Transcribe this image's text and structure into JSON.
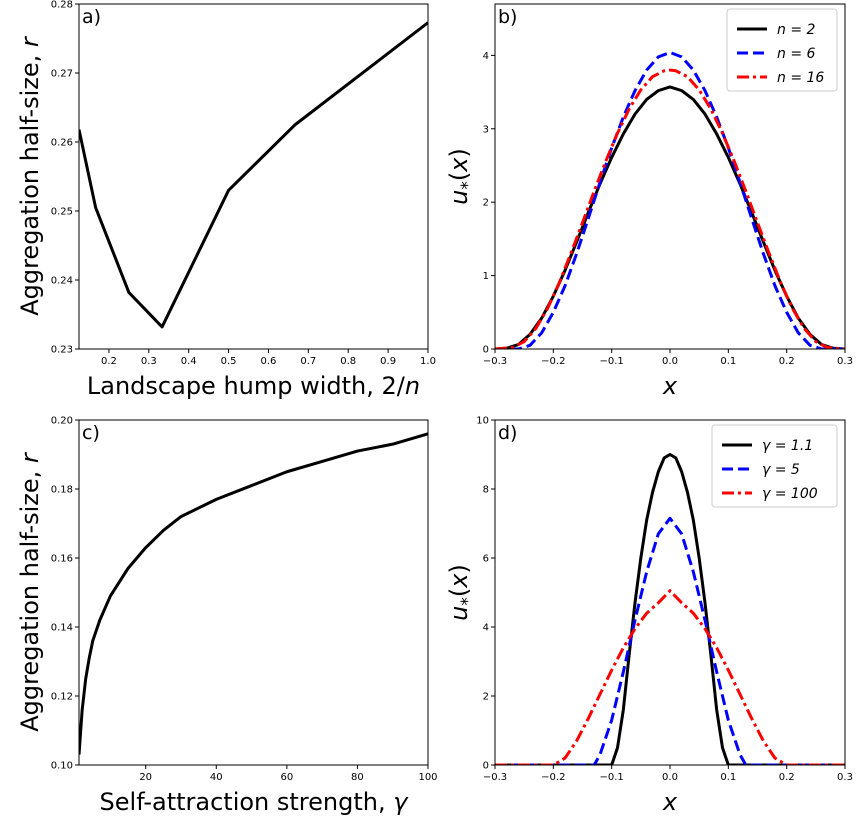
{
  "chart_data": [
    {
      "type": "line",
      "panel_label": "a)",
      "xlabel": "Landscape hump width, 2/n",
      "ylabel": "Aggregation half-size, r",
      "xlim": [
        0.125,
        1.0
      ],
      "ylim": [
        0.23,
        0.28
      ],
      "xticks": [
        0.2,
        0.3,
        0.4,
        0.5,
        0.6,
        0.7,
        0.8,
        0.9,
        1.0
      ],
      "xtick_labels": [
        "0.2",
        "0.3",
        "0.4",
        "0.5",
        "0.6",
        "0.7",
        "0.8",
        "0.9",
        "1.0"
      ],
      "yticks": [
        0.23,
        0.24,
        0.25,
        0.26,
        0.27,
        0.28
      ],
      "ytick_labels": [
        "0.23",
        "0.24",
        "0.25",
        "0.26",
        "0.27",
        "0.28"
      ],
      "series": [
        {
          "color": "#000000",
          "dash": "solid",
          "x": [
            0.125,
            0.1667,
            0.25,
            0.3333,
            0.5,
            0.6667,
            1.0
          ],
          "y": [
            0.2618,
            0.2505,
            0.2382,
            0.2332,
            0.253,
            0.2625,
            0.2773
          ]
        }
      ],
      "legend": false
    },
    {
      "type": "line",
      "panel_label": "b)",
      "xlabel": "x",
      "ylabel": "u_*(x)",
      "xlim": [
        -0.3,
        0.3
      ],
      "ylim": [
        0,
        4.7
      ],
      "xticks": [
        -0.3,
        -0.2,
        -0.1,
        0.0,
        0.1,
        0.2,
        0.3
      ],
      "xtick_labels": [
        "−0.3",
        "−0.2",
        "−0.1",
        "0.0",
        "0.1",
        "0.2",
        "0.3"
      ],
      "yticks": [
        0,
        1,
        2,
        3,
        4
      ],
      "ytick_labels": [
        "0",
        "1",
        "2",
        "3",
        "4"
      ],
      "series": [
        {
          "name": "n = 2",
          "color": "#000000",
          "dash": "solid",
          "x": [
            -0.3,
            -0.28,
            -0.26,
            -0.24,
            -0.22,
            -0.2,
            -0.18,
            -0.16,
            -0.14,
            -0.12,
            -0.1,
            -0.08,
            -0.06,
            -0.04,
            -0.02,
            0.0,
            0.02,
            0.04,
            0.06,
            0.08,
            0.1,
            0.12,
            0.14,
            0.16,
            0.18,
            0.2,
            0.22,
            0.24,
            0.26,
            0.28,
            0.3
          ],
          "y": [
            0.0,
            0.01,
            0.06,
            0.2,
            0.42,
            0.72,
            1.07,
            1.46,
            1.86,
            2.25,
            2.61,
            2.93,
            3.2,
            3.4,
            3.52,
            3.57,
            3.52,
            3.4,
            3.2,
            2.93,
            2.61,
            2.25,
            1.86,
            1.46,
            1.07,
            0.72,
            0.42,
            0.2,
            0.06,
            0.01,
            0.0
          ]
        },
        {
          "name": "n = 6",
          "color": "#0000ff",
          "dash": "dashed",
          "x": [
            -0.3,
            -0.26,
            -0.24,
            -0.22,
            -0.2,
            -0.18,
            -0.16,
            -0.14,
            -0.12,
            -0.1,
            -0.08,
            -0.06,
            -0.04,
            -0.02,
            0.0,
            0.02,
            0.04,
            0.06,
            0.08,
            0.1,
            0.12,
            0.14,
            0.16,
            0.18,
            0.2,
            0.22,
            0.24,
            0.26,
            0.3
          ],
          "y": [
            0.0,
            0.0,
            0.05,
            0.22,
            0.5,
            0.86,
            1.3,
            1.78,
            2.27,
            2.74,
            3.16,
            3.52,
            3.8,
            3.98,
            4.04,
            3.98,
            3.8,
            3.52,
            3.16,
            2.74,
            2.27,
            1.78,
            1.3,
            0.86,
            0.5,
            0.22,
            0.05,
            0.0,
            0.0
          ]
        },
        {
          "name": "n = 16",
          "color": "#ff0000",
          "dash": "dashdot",
          "x": [
            -0.3,
            -0.27,
            -0.25,
            -0.23,
            -0.21,
            -0.19,
            -0.17,
            -0.15,
            -0.13,
            -0.11,
            -0.09,
            -0.07,
            -0.05,
            -0.03,
            -0.01,
            0.0,
            0.01,
            0.03,
            0.05,
            0.07,
            0.09,
            0.11,
            0.13,
            0.15,
            0.17,
            0.19,
            0.21,
            0.23,
            0.25,
            0.27,
            0.3
          ],
          "y": [
            0.0,
            0.02,
            0.1,
            0.28,
            0.55,
            0.9,
            1.3,
            1.72,
            2.15,
            2.56,
            2.94,
            3.27,
            3.53,
            3.71,
            3.79,
            3.8,
            3.79,
            3.71,
            3.53,
            3.27,
            2.94,
            2.56,
            2.15,
            1.72,
            1.3,
            0.9,
            0.55,
            0.28,
            0.1,
            0.02,
            0.0
          ]
        }
      ],
      "legend": true,
      "legend_position": "top-right"
    },
    {
      "type": "line",
      "panel_label": "c)",
      "xlabel": "Self-attraction strength, γ",
      "ylabel": "Aggregation half-size, r",
      "xlim": [
        1.1,
        100
      ],
      "ylim": [
        0.1,
        0.2
      ],
      "xticks": [
        20,
        40,
        60,
        80,
        100
      ],
      "xtick_labels": [
        "20",
        "40",
        "60",
        "80",
        "100"
      ],
      "yticks": [
        0.1,
        0.12,
        0.14,
        0.16,
        0.18,
        0.2
      ],
      "ytick_labels": [
        "0.10",
        "0.12",
        "0.14",
        "0.16",
        "0.18",
        "0.20"
      ],
      "series": [
        {
          "color": "#000000",
          "dash": "solid",
          "x": [
            1.1,
            2,
            3,
            4,
            5,
            7,
            10,
            15,
            20,
            25,
            30,
            40,
            50,
            60,
            70,
            80,
            90,
            100
          ],
          "y": [
            0.103,
            0.116,
            0.125,
            0.131,
            0.136,
            0.142,
            0.149,
            0.157,
            0.163,
            0.168,
            0.172,
            0.177,
            0.181,
            0.185,
            0.188,
            0.191,
            0.193,
            0.196
          ]
        }
      ],
      "legend": false
    },
    {
      "type": "line",
      "panel_label": "d)",
      "xlabel": "x",
      "ylabel": "u_*(x)",
      "xlim": [
        -0.3,
        0.3
      ],
      "ylim": [
        0,
        10
      ],
      "xticks": [
        -0.3,
        -0.2,
        -0.1,
        0.0,
        0.1,
        0.2,
        0.3
      ],
      "xtick_labels": [
        "−0.3",
        "−0.2",
        "−0.1",
        "0.0",
        "0.1",
        "0.2",
        "0.3"
      ],
      "yticks": [
        0,
        2,
        4,
        6,
        8,
        10
      ],
      "ytick_labels": [
        "0",
        "2",
        "4",
        "6",
        "8",
        "10"
      ],
      "series": [
        {
          "name": "γ = 1.1",
          "color": "#000000",
          "dash": "solid",
          "x": [
            -0.3,
            -0.1,
            -0.09,
            -0.08,
            -0.07,
            -0.06,
            -0.05,
            -0.04,
            -0.03,
            -0.02,
            -0.01,
            0.0,
            0.01,
            0.02,
            0.03,
            0.04,
            0.05,
            0.06,
            0.07,
            0.08,
            0.09,
            0.1,
            0.3
          ],
          "y": [
            0.0,
            0.0,
            0.5,
            1.6,
            3.2,
            4.7,
            6.0,
            7.1,
            7.9,
            8.5,
            8.9,
            9.0,
            8.9,
            8.5,
            7.9,
            7.1,
            6.0,
            4.7,
            3.2,
            1.6,
            0.5,
            0.0,
            0.0
          ]
        },
        {
          "name": "γ = 5",
          "color": "#0000ff",
          "dash": "dashed",
          "x": [
            -0.3,
            -0.13,
            -0.12,
            -0.1,
            -0.08,
            -0.06,
            -0.04,
            -0.02,
            0.0,
            0.02,
            0.04,
            0.06,
            0.08,
            0.1,
            0.12,
            0.13,
            0.3
          ],
          "y": [
            0.0,
            0.0,
            0.3,
            1.3,
            2.7,
            4.2,
            5.6,
            6.7,
            7.15,
            6.7,
            5.6,
            4.2,
            2.7,
            1.3,
            0.3,
            0.0,
            0.0
          ]
        },
        {
          "name": "γ = 100",
          "color": "#ff0000",
          "dash": "dashdot",
          "x": [
            -0.3,
            -0.2,
            -0.18,
            -0.16,
            -0.14,
            -0.12,
            -0.1,
            -0.08,
            -0.06,
            -0.04,
            -0.02,
            0.0,
            0.02,
            0.04,
            0.06,
            0.08,
            0.1,
            0.12,
            0.14,
            0.16,
            0.18,
            0.2,
            0.3
          ],
          "y": [
            0.0,
            0.0,
            0.2,
            0.7,
            1.35,
            2.05,
            2.75,
            3.4,
            3.95,
            4.4,
            4.7,
            5.05,
            4.7,
            4.4,
            3.95,
            3.4,
            2.75,
            2.05,
            1.35,
            0.7,
            0.2,
            0.0,
            0.0
          ]
        }
      ],
      "legend": true,
      "legend_position": "top-right"
    }
  ]
}
